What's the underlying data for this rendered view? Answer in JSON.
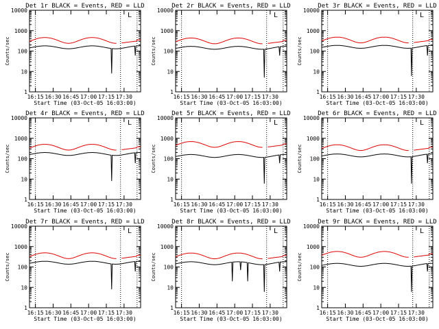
{
  "chart_data": {
    "type": "line",
    "common": {
      "xlabel": "Start Time (03-Oct-05 16:03:00)",
      "ylabel": "Counts/sec",
      "x_ticks": [
        "16:15",
        "16:30",
        "16:45",
        "17:00",
        "17:15",
        "17:30"
      ],
      "x_range_minutes": [
        7,
        101
      ],
      "y_scale": "log",
      "y_ticks": [
        "1",
        "10",
        "100",
        "1000",
        "10000"
      ],
      "ylim": [
        1,
        10000
      ],
      "dotted_vlines_minutes": [
        12,
        84,
        98
      ],
      "legend_marker": "L",
      "colors": {
        "events": "#000000",
        "lld": "#e00000"
      }
    },
    "panels": [
      {
        "title": "Det 1r BLACK = Events, RED = LLD",
        "events_level": 180,
        "lld_level": 400,
        "events_drops": [
          [
            "76.5",
            "8"
          ],
          [
            "96.5",
            "60"
          ]
        ]
      },
      {
        "title": "Det 2r BLACK = Events, RED = LLD",
        "events_level": 170,
        "lld_level": 380,
        "events_drops": [
          [
            "82",
            "5"
          ],
          [
            "95",
            "60"
          ]
        ]
      },
      {
        "title": "Det 3r BLACK = Events, RED = LLD",
        "events_level": 190,
        "lld_level": 420,
        "events_drops": [
          [
            "83",
            "6"
          ],
          [
            "96.5",
            "60"
          ]
        ]
      },
      {
        "title": "Det 4r BLACK = Events, RED = LLD",
        "events_level": 200,
        "lld_level": 440,
        "events_drops": [
          [
            "76.5",
            "8"
          ],
          [
            "96.5",
            "60"
          ]
        ]
      },
      {
        "title": "Det 5r BLACK = Events, RED = LLD",
        "events_level": 160,
        "lld_level": 600,
        "events_drops": [
          [
            "82",
            "6"
          ],
          [
            "95",
            "60"
          ]
        ]
      },
      {
        "title": "Det 6r BLACK = Events, RED = LLD",
        "events_level": 170,
        "lld_level": 420,
        "events_drops": [
          [
            "83",
            "6"
          ],
          [
            "96.5",
            "60"
          ]
        ]
      },
      {
        "title": "Det 7r BLACK = Events, RED = LLD",
        "events_level": 190,
        "lld_level": 430,
        "events_drops": [
          [
            "76.5",
            "8"
          ],
          [
            "96.5",
            "60"
          ]
        ]
      },
      {
        "title": "Det 8r BLACK = Events, RED = LLD",
        "events_level": 180,
        "lld_level": 420,
        "events_drops": [
          [
            "55",
            "20"
          ],
          [
            "62",
            "70"
          ],
          [
            "68",
            "20"
          ],
          [
            "82",
            "6"
          ],
          [
            "95",
            "60"
          ]
        ]
      },
      {
        "title": "Det 9r BLACK = Events, RED = LLD",
        "events_level": 150,
        "lld_level": 500,
        "events_drops": [
          [
            "83",
            "6"
          ],
          [
            "96.5",
            "60"
          ]
        ]
      }
    ]
  }
}
